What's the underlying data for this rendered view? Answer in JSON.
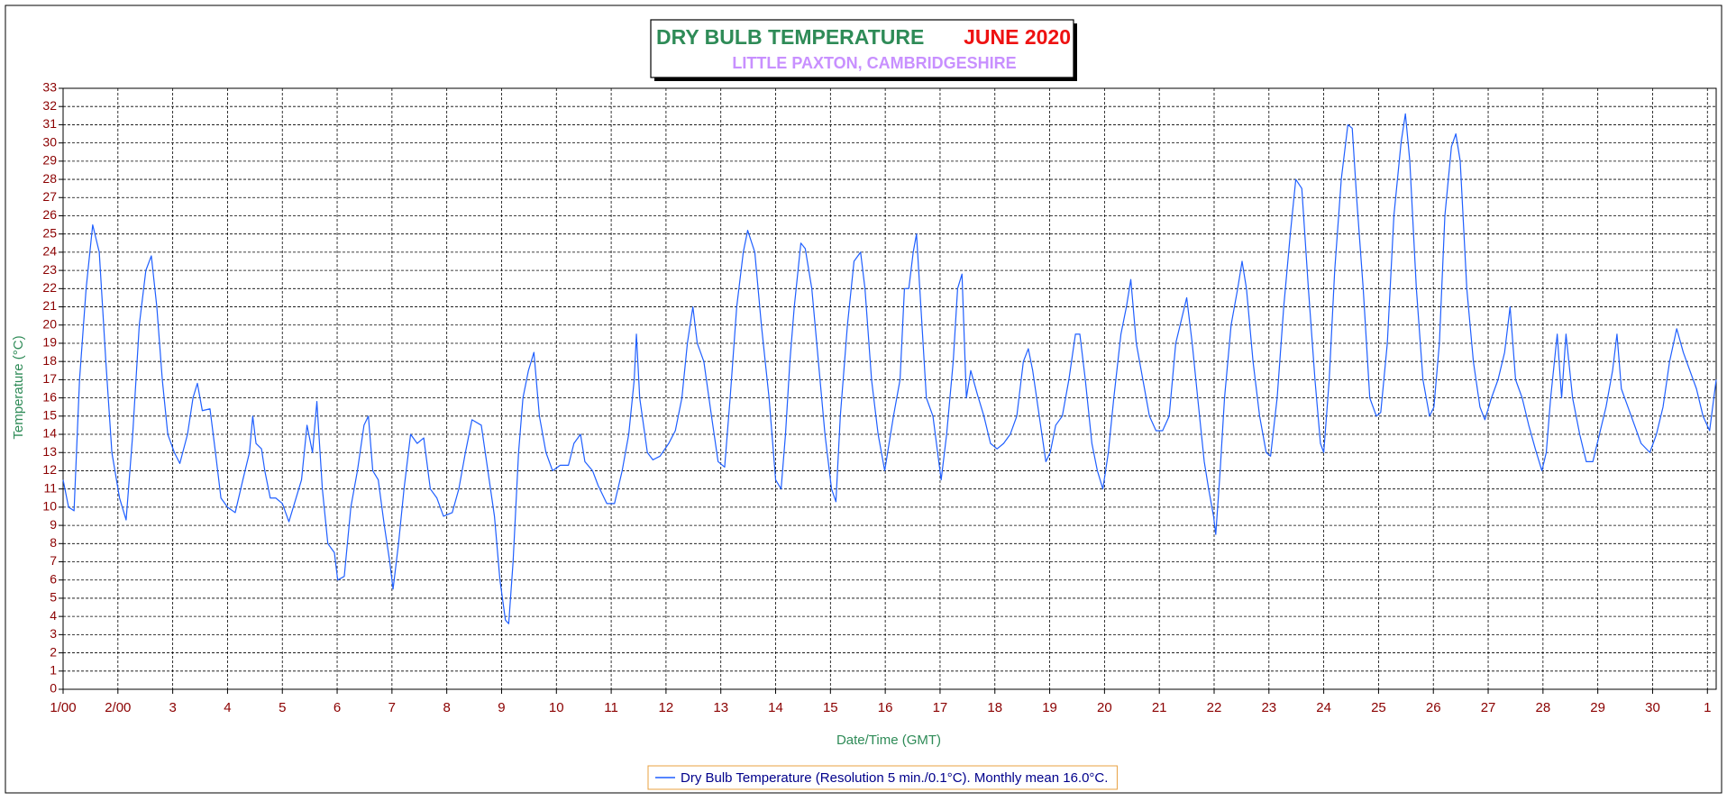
{
  "chart_data": {
    "type": "line",
    "title": "DRY BULB TEMPERATURE",
    "title_period": "JUNE 2020",
    "subtitle": "LITTLE PAXTON, CAMBRIDGESHIRE",
    "x_label": "Date/Time (GMT)",
    "y_label": "Temperature (°C)",
    "legend": "bottom",
    "grid": true,
    "xlim": [
      0,
      30.16
    ],
    "xticks": [
      {
        "value": 0,
        "label": "1/00"
      },
      {
        "value": 1,
        "label": "2/00"
      },
      {
        "value": 2,
        "label": "3"
      },
      {
        "value": 3,
        "label": "4"
      },
      {
        "value": 4,
        "label": "5"
      },
      {
        "value": 5,
        "label": "6"
      },
      {
        "value": 6,
        "label": "7"
      },
      {
        "value": 7,
        "label": "8"
      },
      {
        "value": 8,
        "label": "9"
      },
      {
        "value": 9,
        "label": "10"
      },
      {
        "value": 10,
        "label": "11"
      },
      {
        "value": 11,
        "label": "12"
      },
      {
        "value": 12,
        "label": "13"
      },
      {
        "value": 13,
        "label": "14"
      },
      {
        "value": 14,
        "label": "15"
      },
      {
        "value": 15,
        "label": "16"
      },
      {
        "value": 16,
        "label": "17"
      },
      {
        "value": 17,
        "label": "18"
      },
      {
        "value": 18,
        "label": "19"
      },
      {
        "value": 19,
        "label": "20"
      },
      {
        "value": 20,
        "label": "21"
      },
      {
        "value": 21,
        "label": "22"
      },
      {
        "value": 22,
        "label": "23"
      },
      {
        "value": 23,
        "label": "24"
      },
      {
        "value": 24,
        "label": "25"
      },
      {
        "value": 25,
        "label": "26"
      },
      {
        "value": 26,
        "label": "27"
      },
      {
        "value": 27,
        "label": "28"
      },
      {
        "value": 28,
        "label": "29"
      },
      {
        "value": 29,
        "label": "30"
      },
      {
        "value": 30,
        "label": "1"
      }
    ],
    "ylim": [
      0,
      33
    ],
    "yticks": [
      0,
      1,
      2,
      3,
      4,
      5,
      6,
      7,
      8,
      9,
      10,
      11,
      12,
      13,
      14,
      15,
      16,
      17,
      18,
      19,
      20,
      21,
      22,
      23,
      24,
      25,
      26,
      27,
      28,
      29,
      30,
      31,
      32,
      33
    ],
    "x": [
      0,
      0.1,
      0.2,
      0.3,
      0.42,
      0.54,
      0.66,
      0.78,
      0.89,
      1.03,
      1.15,
      1.27,
      1.39,
      1.51,
      1.61,
      1.71,
      1.81,
      1.91,
      2.03,
      2.13,
      2.27,
      2.37,
      2.45,
      2.54,
      2.68,
      2.78,
      2.88,
      3.0,
      3.14,
      3.28,
      3.4,
      3.46,
      3.52,
      3.62,
      3.68,
      3.78,
      3.88,
      4.0,
      4.12,
      4.25,
      4.35,
      4.45,
      4.55,
      4.63,
      4.73,
      4.83,
      4.95,
      5.01,
      5.13,
      5.25,
      5.37,
      5.49,
      5.57,
      5.65,
      5.75,
      5.86,
      5.96,
      6.02,
      6.12,
      6.22,
      6.34,
      6.46,
      6.58,
      6.7,
      6.82,
      6.94,
      7.1,
      7.22,
      7.34,
      7.46,
      7.63,
      7.75,
      7.87,
      7.97,
      8.07,
      8.13,
      8.21,
      8.31,
      8.39,
      8.49,
      8.59,
      8.69,
      8.81,
      8.93,
      9.07,
      9.22,
      9.32,
      9.44,
      9.52,
      9.66,
      9.76,
      9.92,
      10.06,
      10.2,
      10.32,
      10.42,
      10.46,
      10.52,
      10.66,
      10.76,
      10.89,
      11.05,
      11.17,
      11.29,
      11.39,
      11.49,
      11.57,
      11.69,
      11.83,
      11.95,
      12.07,
      12.17,
      12.29,
      12.41,
      12.49,
      12.62,
      12.74,
      12.88,
      13.0,
      13.1,
      13.18,
      13.26,
      13.34,
      13.46,
      13.54,
      13.66,
      13.78,
      13.9,
      14.02,
      14.1,
      14.18,
      14.31,
      14.43,
      14.55,
      14.63,
      14.75,
      14.87,
      14.99,
      15.07,
      15.15,
      15.27,
      15.35,
      15.43,
      15.51,
      15.57,
      15.65,
      15.75,
      15.87,
      16.02,
      16.12,
      16.24,
      16.32,
      16.4,
      16.48,
      16.56,
      16.68,
      16.8,
      16.92,
      17.04,
      17.16,
      17.28,
      17.4,
      17.52,
      17.61,
      17.69,
      17.81,
      17.93,
      18.01,
      18.11,
      18.23,
      18.35,
      18.47,
      18.55,
      18.65,
      18.77,
      18.87,
      18.97,
      19.07,
      19.17,
      19.3,
      19.4,
      19.48,
      19.58,
      19.7,
      19.82,
      19.94,
      20.06,
      20.18,
      20.3,
      20.42,
      20.5,
      20.6,
      20.7,
      20.82,
      20.9,
      20.99,
      21.03,
      21.11,
      21.19,
      21.31,
      21.43,
      21.51,
      21.59,
      21.71,
      21.83,
      21.95,
      22.03,
      22.15,
      22.27,
      22.39,
      22.49,
      22.6,
      22.72,
      22.84,
      22.94,
      23.0,
      23.1,
      23.2,
      23.32,
      23.44,
      23.52,
      23.6,
      23.72,
      23.84,
      23.96,
      24.04,
      24.16,
      24.28,
      24.41,
      24.49,
      24.57,
      24.69,
      24.81,
      24.93,
      25.01,
      25.11,
      25.21,
      25.33,
      25.41,
      25.49,
      25.61,
      25.73,
      25.85,
      25.94,
      26.06,
      26.18,
      26.3,
      26.4,
      26.5,
      26.62,
      26.74,
      26.86,
      26.98,
      27.06,
      27.14,
      27.26,
      27.34,
      27.42,
      27.54,
      27.67,
      27.79,
      27.91,
      28.03,
      28.15,
      28.27,
      28.35,
      28.43,
      28.55,
      28.67,
      28.79,
      28.95,
      29.07,
      29.19,
      29.31,
      29.44,
      29.56,
      29.68,
      29.8,
      29.92,
      30.04,
      30.16
    ],
    "series": [
      {
        "name": "Dry Bulb Temperature (Resolution 5 min./0.1°C). Monthly mean 16.0°C.",
        "color": "#1f5fff",
        "values": [
          11.5,
          10,
          9.8,
          17,
          22,
          25.5,
          24,
          18,
          13,
          10.5,
          9.3,
          14,
          20,
          23,
          23.8,
          21,
          17,
          14,
          13,
          12.4,
          14,
          16,
          16.8,
          15.3,
          15.4,
          13,
          10.5,
          10,
          9.7,
          11.5,
          13,
          15,
          13.5,
          13.2,
          12,
          10.5,
          10.5,
          10.2,
          9.2,
          10.5,
          11.5,
          14.5,
          13,
          15.8,
          11,
          8,
          7.5,
          6,
          6.2,
          10,
          12,
          14.5,
          15,
          12,
          11.5,
          9,
          7,
          5.5,
          8,
          11,
          14,
          13.5,
          13.8,
          11,
          10.5,
          9.5,
          9.7,
          11,
          13,
          14.8,
          14.5,
          12,
          9.5,
          6,
          3.8,
          3.6,
          7,
          13,
          16,
          17.5,
          18.5,
          15,
          13,
          12,
          12.3,
          12.3,
          13.5,
          14,
          12.5,
          12,
          11.2,
          10.2,
          10.2,
          12,
          14,
          17,
          19.5,
          16,
          13,
          12.6,
          12.8,
          13.5,
          14.2,
          16,
          19,
          21,
          19,
          18,
          15,
          12.5,
          12.2,
          16,
          21,
          24,
          25.2,
          24,
          20,
          16,
          11.5,
          11,
          14,
          18,
          21,
          24.5,
          24.2,
          22,
          18,
          14,
          11,
          10.3,
          15,
          20,
          23.5,
          24,
          22,
          17,
          14,
          12,
          13.5,
          15,
          17,
          22,
          22,
          24,
          25,
          21,
          16,
          15,
          11.5,
          14,
          18,
          22,
          22.8,
          16,
          17.5,
          16.2,
          15,
          13.5,
          13.2,
          13.5,
          14,
          15,
          18,
          18.7,
          17.5,
          15,
          12.5,
          13,
          14.5,
          15,
          17,
          19.5,
          19.5,
          17,
          13.5,
          12,
          11,
          13,
          16,
          19.5,
          21,
          22.5,
          19,
          17,
          15,
          14.2,
          14.2,
          15,
          19,
          20.5,
          21.5,
          19,
          16,
          12.5,
          11,
          9.5,
          8.5,
          12,
          16,
          20,
          22,
          23.5,
          22,
          18,
          15,
          13,
          12.8,
          16,
          21,
          25,
          28,
          27.5,
          22,
          17,
          13.5,
          13,
          17,
          23,
          28,
          31,
          30.8,
          27,
          22,
          16,
          15,
          15.2,
          19,
          26,
          30,
          31.6,
          29,
          22,
          17,
          15,
          15.5,
          19,
          26,
          29.8,
          30.5,
          29,
          22,
          18,
          15.5,
          14.8,
          16,
          17,
          18.5,
          21,
          17,
          16,
          14.5,
          13.2,
          12,
          13,
          16,
          19.5,
          16,
          19.5,
          16,
          14,
          12.5,
          12.5,
          14,
          15.5,
          17.5,
          19.5,
          16.5,
          15.5,
          14.5,
          13.5,
          13,
          14,
          15.5,
          18,
          19.8,
          18.5,
          17.5,
          16.5,
          15,
          14.2,
          17
        ]
      }
    ]
  }
}
